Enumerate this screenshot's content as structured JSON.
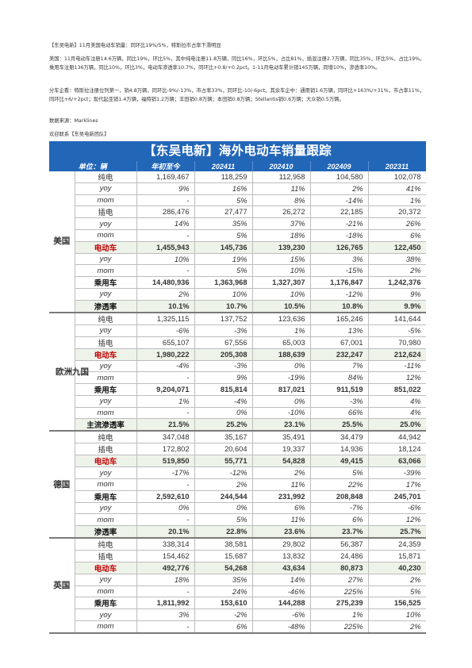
{
  "text": {
    "heading": "【东吴电新】11月美国电动车销量：同环比19%/5%，特斯拉市占率下滑明显",
    "para1": "美国：11月电动车注册14.6万辆，同比19%，环比5%，其中纯电注册11.8万辆，同比16%，环比5%，占比81%，插混注册2.7万辆，同比35%，环比5%，占比19%。乘用车注册136万辆，同比10%，环比3%，电动车渗透率10.7%，同环比+0.8/+0.2pct。1-11月电动车累计销145万辆，同增10%，渗透率10%。",
    "para2": "分车企看：特斯拉注册位列第一，销4.8万辆，同环比-9%/-13%，市占率33%，同环比-10/-6pct。其余车企中：通用销1.6万辆，同环比+163%/+31%，市占率11%，同环比+6/+2pct；现代起亚销1.4万辆，福特销1.2万辆；丰田销0.8万辆；本田销0.8万辆；Stellantis销0.6万辆；大众销0.5万辆。",
    "source": "数据来源：Marklines",
    "contact": "欢迎联系【东吴电新团队】"
  },
  "table": {
    "banner": "【东吴电新】海外电动车销量跟踪",
    "headers": [
      "单位：辆",
      "年初至今",
      "202411",
      "202410",
      "202409",
      "202311"
    ],
    "colors": {
      "banner_bg": "#2266b8",
      "ev_text": "#c00000",
      "highlight_bg": "#eef3ea"
    },
    "regions": [
      {
        "name": "美国",
        "rows": [
          {
            "label": "纯电",
            "style": "normal",
            "values": [
              "1,169,467",
              "118,259",
              "112,958",
              "104,580",
              "102,078"
            ]
          },
          {
            "label": "yoy",
            "style": "ital",
            "values": [
              "9%",
              "16%",
              "11%",
              "2%",
              "41%"
            ]
          },
          {
            "label": "mom",
            "style": "ital",
            "values": [
              "-",
              "5%",
              "8%",
              "-14%",
              "1%"
            ]
          },
          {
            "label": "插电",
            "style": "normal",
            "values": [
              "286,476",
              "27,477",
              "26,272",
              "22,185",
              "20,372"
            ]
          },
          {
            "label": "yoy",
            "style": "ital",
            "values": [
              "14%",
              "35%",
              "37%",
              "-21%",
              "26%"
            ]
          },
          {
            "label": "mom",
            "style": "ital",
            "values": [
              "-",
              "5%",
              "18%",
              "-18%",
              "6%"
            ]
          },
          {
            "label": "电动车",
            "style": "ev",
            "values": [
              "1,455,943",
              "145,736",
              "139,230",
              "126,765",
              "122,450"
            ]
          },
          {
            "label": "yoy",
            "style": "ital",
            "values": [
              "10%",
              "19%",
              "15%",
              "3%",
              "38%"
            ]
          },
          {
            "label": "mom",
            "style": "ital",
            "values": [
              "-",
              "5%",
              "10%",
              "-15%",
              "2%"
            ]
          },
          {
            "label": "乘用车",
            "style": "bold",
            "values": [
              "14,480,936",
              "1,363,968",
              "1,327,307",
              "1,176,847",
              "1,242,376"
            ]
          },
          {
            "label": "yoy",
            "style": "ital",
            "values": [
              "2%",
              "10%",
              "10%",
              "-12%",
              "9%"
            ]
          },
          {
            "label": "渗透率",
            "style": "pen",
            "values": [
              "10.1%",
              "10.7%",
              "10.5%",
              "10.8%",
              "9.9%"
            ]
          }
        ]
      },
      {
        "name": "欧洲九国",
        "rows": [
          {
            "label": "纯电",
            "style": "normal",
            "values": [
              "1,325,115",
              "137,752",
              "123,636",
              "165,246",
              "141,644"
            ]
          },
          {
            "label": "yoy",
            "style": "ital",
            "values": [
              "-6%",
              "-3%",
              "1%",
              "13%",
              "-5%"
            ]
          },
          {
            "label": "插电",
            "style": "normal",
            "values": [
              "655,107",
              "67,556",
              "65,003",
              "67,001",
              "70,980"
            ]
          },
          {
            "label": "电动车",
            "style": "ev",
            "values": [
              "1,980,222",
              "205,308",
              "188,639",
              "232,247",
              "212,624"
            ]
          },
          {
            "label": "yoy",
            "style": "ital",
            "values": [
              "-4%",
              "-3%",
              "0%",
              "7%",
              "-11%"
            ]
          },
          {
            "label": "mom",
            "style": "ital",
            "values": [
              "-",
              "9%",
              "-19%",
              "84%",
              "12%"
            ]
          },
          {
            "label": "乘用车",
            "style": "bold",
            "values": [
              "9,204,071",
              "815,814",
              "817,021",
              "911,519",
              "851,022"
            ]
          },
          {
            "label": "yoy",
            "style": "ital",
            "values": [
              "1%",
              "-4%",
              "0%",
              "-3%",
              "4%"
            ]
          },
          {
            "label": "mom",
            "style": "ital",
            "values": [
              "-",
              "0%",
              "-10%",
              "66%",
              "4%"
            ]
          },
          {
            "label": "主流渗透率",
            "style": "pen",
            "values": [
              "21.5%",
              "25.2%",
              "23.1%",
              "25.5%",
              "25.0%"
            ]
          }
        ]
      },
      {
        "name": "德国",
        "rows": [
          {
            "label": "纯电",
            "style": "normal",
            "values": [
              "347,048",
              "35,167",
              "35,491",
              "34,479",
              "44,942"
            ]
          },
          {
            "label": "插电",
            "style": "normal",
            "values": [
              "172,802",
              "20,604",
              "19,337",
              "14,936",
              "18,124"
            ]
          },
          {
            "label": "电动车",
            "style": "ev",
            "values": [
              "519,850",
              "55,771",
              "54,828",
              "49,415",
              "63,066"
            ]
          },
          {
            "label": "yoy",
            "style": "ital",
            "values": [
              "-17%",
              "-12%",
              "2%",
              "5%",
              "-39%"
            ]
          },
          {
            "label": "mom",
            "style": "ital",
            "values": [
              "-",
              "2%",
              "11%",
              "22%",
              "17%"
            ]
          },
          {
            "label": "乘用车",
            "style": "bold",
            "values": [
              "2,592,610",
              "244,544",
              "231,992",
              "208,848",
              "245,701"
            ]
          },
          {
            "label": "yoy",
            "style": "ital",
            "values": [
              "0%",
              "0%",
              "6%",
              "-7%",
              "-6%"
            ]
          },
          {
            "label": "mom",
            "style": "ital",
            "values": [
              "-",
              "5%",
              "11%",
              "6%",
              "12%"
            ]
          },
          {
            "label": "渗透率",
            "style": "pen",
            "values": [
              "20.1%",
              "22.8%",
              "23.6%",
              "23.7%",
              "25.7%"
            ]
          }
        ]
      },
      {
        "name": "英国",
        "rows": [
          {
            "label": "纯电",
            "style": "normal",
            "values": [
              "338,314",
              "38,581",
              "29,802",
              "56,387",
              "24,359"
            ]
          },
          {
            "label": "插电",
            "style": "normal",
            "values": [
              "154,462",
              "15,687",
              "13,832",
              "24,486",
              "15,871"
            ]
          },
          {
            "label": "电动车",
            "style": "ev",
            "values": [
              "492,776",
              "54,268",
              "43,634",
              "80,873",
              "40,230"
            ]
          },
          {
            "label": "yoy",
            "style": "ital",
            "values": [
              "18%",
              "35%",
              "14%",
              "27%",
              "2%"
            ]
          },
          {
            "label": "mom",
            "style": "ital",
            "values": [
              "-",
              "24%",
              "-46%",
              "225%",
              "5%"
            ]
          },
          {
            "label": "乘用车",
            "style": "bold",
            "values": [
              "1,811,992",
              "153,610",
              "144,288",
              "275,239",
              "156,525"
            ]
          },
          {
            "label": "yoy",
            "style": "ital",
            "values": [
              "3%",
              "-2%",
              "-6%",
              "1%",
              "10%"
            ]
          },
          {
            "label": "mom",
            "style": "ital",
            "values": [
              "-",
              "6%",
              "-48%",
              "225%",
              "2%"
            ]
          }
        ]
      }
    ]
  }
}
